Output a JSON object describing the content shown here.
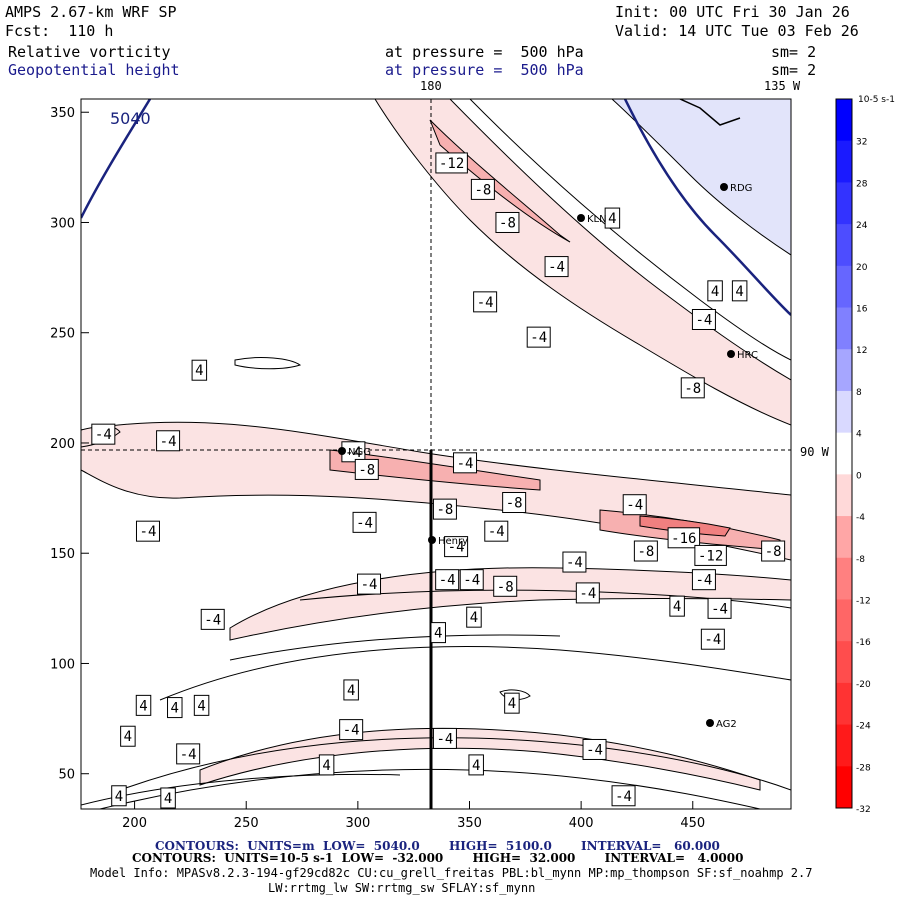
{
  "header": {
    "model": "AMPS 2.67-km WRF SP",
    "forecast": "Fcst:  110 h",
    "init": "Init: 00 UTC Fri 30 Jan 26",
    "valid": "Valid: 14 UTC Tue 03 Feb 26",
    "field1_name": "Relative vorticity",
    "field1_level": "at pressure =  500 hPa",
    "field1_sm": "sm= 2",
    "field2_name": "Geopotential height",
    "field2_level": "at pressure =  500 hPa",
    "field2_sm": "sm= 2"
  },
  "map_labels": {
    "lon_180": "180",
    "lon_135w": "135 W",
    "lat_90w": "90 W",
    "height_contour": "5040"
  },
  "stations": [
    {
      "name": "RDG",
      "x": 0,
      "y": 0
    },
    {
      "name": "KLN",
      "x": 0,
      "y": 0
    },
    {
      "name": "HRC",
      "x": 0,
      "y": 0
    },
    {
      "name": "NGG",
      "x": 0,
      "y": 0
    },
    {
      "name": "Henry",
      "x": 0,
      "y": 0
    },
    {
      "name": "AG2",
      "x": 0,
      "y": 0
    }
  ],
  "colorbar": {
    "unit": "10-5 s-1",
    "ticks": [
      "32",
      "28",
      "24",
      "20",
      "16",
      "12",
      "8",
      "4",
      "0",
      "-4",
      "-8",
      "-12",
      "-16",
      "-20",
      "-24",
      "-28",
      "-32"
    ],
    "colors": [
      "#0000ff",
      "#1a1aff",
      "#3333ff",
      "#4d4dff",
      "#6666ff",
      "#8080ff",
      "#a6a6ff",
      "#d9d9ff",
      "#ffffff",
      "#ffd9d9",
      "#ffa6a6",
      "#ff8080",
      "#ff6666",
      "#ff4d4d",
      "#ff3333",
      "#ff1a1a",
      "#ff0000"
    ]
  },
  "footer": {
    "contours1": "CONTOURS:  UNITS=m  LOW=  5040.0       HIGH=  5100.0       INTERVAL=   60.000",
    "contours2": "CONTOURS:  UNITS=10-5 s-1  LOW=  -32.000       HIGH=  32.000       INTERVAL=   4.0000",
    "model_info": "Model Info: MPASv8.2.3-194-gf29cd82c CU:cu_grell_freitas PBL:bl_mynn MP:mp_thompson SF:sf_noahmp 2.7",
    "model_info2": "LW:rrtmg_lw SW:rrtmg_sw SFLAY:sf_mynn"
  },
  "chart_data": {
    "type": "contour",
    "x_ticks": [
      200,
      250,
      300,
      350,
      400,
      450
    ],
    "y_ticks": [
      50,
      100,
      150,
      200,
      250,
      300,
      350
    ],
    "xlim": [
      176,
      494
    ],
    "ylim": [
      34,
      356
    ],
    "vorticity_contour_labels": [
      {
        "v": "-12",
        "x": 342,
        "y": 327
      },
      {
        "v": "-8",
        "x": 356,
        "y": 315
      },
      {
        "v": "-8",
        "x": 367,
        "y": 300
      },
      {
        "v": "4",
        "x": 414,
        "y": 302
      },
      {
        "v": "-4",
        "x": 389,
        "y": 280
      },
      {
        "v": "-4",
        "x": 357,
        "y": 264
      },
      {
        "v": "-4",
        "x": 381,
        "y": 248
      },
      {
        "v": "4",
        "x": 460,
        "y": 269
      },
      {
        "v": "4",
        "x": 471,
        "y": 269
      },
      {
        "v": "-4",
        "x": 455,
        "y": 256
      },
      {
        "v": "-8",
        "x": 450,
        "y": 225
      },
      {
        "v": "4",
        "x": 229,
        "y": 233
      },
      {
        "v": "-4",
        "x": 186,
        "y": 204
      },
      {
        "v": "-4",
        "x": 215,
        "y": 201
      },
      {
        "v": "-4",
        "x": 298,
        "y": 196
      },
      {
        "v": "-8",
        "x": 304,
        "y": 188
      },
      {
        "v": "-4",
        "x": 348,
        "y": 191
      },
      {
        "v": "-8",
        "x": 339,
        "y": 170
      },
      {
        "v": "-8",
        "x": 370,
        "y": 173
      },
      {
        "v": "-4",
        "x": 424,
        "y": 172
      },
      {
        "v": "-4",
        "x": 303,
        "y": 164
      },
      {
        "v": "-4",
        "x": 206,
        "y": 160
      },
      {
        "v": "-4",
        "x": 362,
        "y": 160
      },
      {
        "v": "-4",
        "x": 344,
        "y": 153
      },
      {
        "v": "-16",
        "x": 446,
        "y": 157
      },
      {
        "v": "-8",
        "x": 429,
        "y": 151
      },
      {
        "v": "-12",
        "x": 458,
        "y": 149
      },
      {
        "v": "-8",
        "x": 486,
        "y": 151
      },
      {
        "v": "-4",
        "x": 397,
        "y": 146
      },
      {
        "v": "-4",
        "x": 305,
        "y": 136
      },
      {
        "v": "-4",
        "x": 340,
        "y": 138
      },
      {
        "v": "-4",
        "x": 351,
        "y": 138
      },
      {
        "v": "-8",
        "x": 366,
        "y": 135
      },
      {
        "v": "-4",
        "x": 403,
        "y": 132
      },
      {
        "v": "-4",
        "x": 455,
        "y": 138
      },
      {
        "v": "4",
        "x": 443,
        "y": 126
      },
      {
        "v": "-4",
        "x": 462,
        "y": 125
      },
      {
        "v": "-4",
        "x": 235,
        "y": 120
      },
      {
        "v": "4",
        "x": 352,
        "y": 121
      },
      {
        "v": "4",
        "x": 336,
        "y": 114
      },
      {
        "v": "-4",
        "x": 459,
        "y": 111
      },
      {
        "v": "4",
        "x": 297,
        "y": 88
      },
      {
        "v": "4",
        "x": 204,
        "y": 81
      },
      {
        "v": "4",
        "x": 218,
        "y": 80
      },
      {
        "v": "4",
        "x": 230,
        "y": 81
      },
      {
        "v": "4",
        "x": 369,
        "y": 82
      },
      {
        "v": "4",
        "x": 197,
        "y": 67
      },
      {
        "v": "-4",
        "x": 297,
        "y": 70
      },
      {
        "v": "-4",
        "x": 339,
        "y": 66
      },
      {
        "v": "-4",
        "x": 224,
        "y": 59
      },
      {
        "v": "-4",
        "x": 406,
        "y": 61
      },
      {
        "v": "4",
        "x": 286,
        "y": 54
      },
      {
        "v": "4",
        "x": 353,
        "y": 54
      },
      {
        "v": "4",
        "x": 193,
        "y": 40
      },
      {
        "v": "4",
        "x": 215,
        "y": 39
      },
      {
        "v": "-4",
        "x": 419,
        "y": 40
      }
    ]
  }
}
